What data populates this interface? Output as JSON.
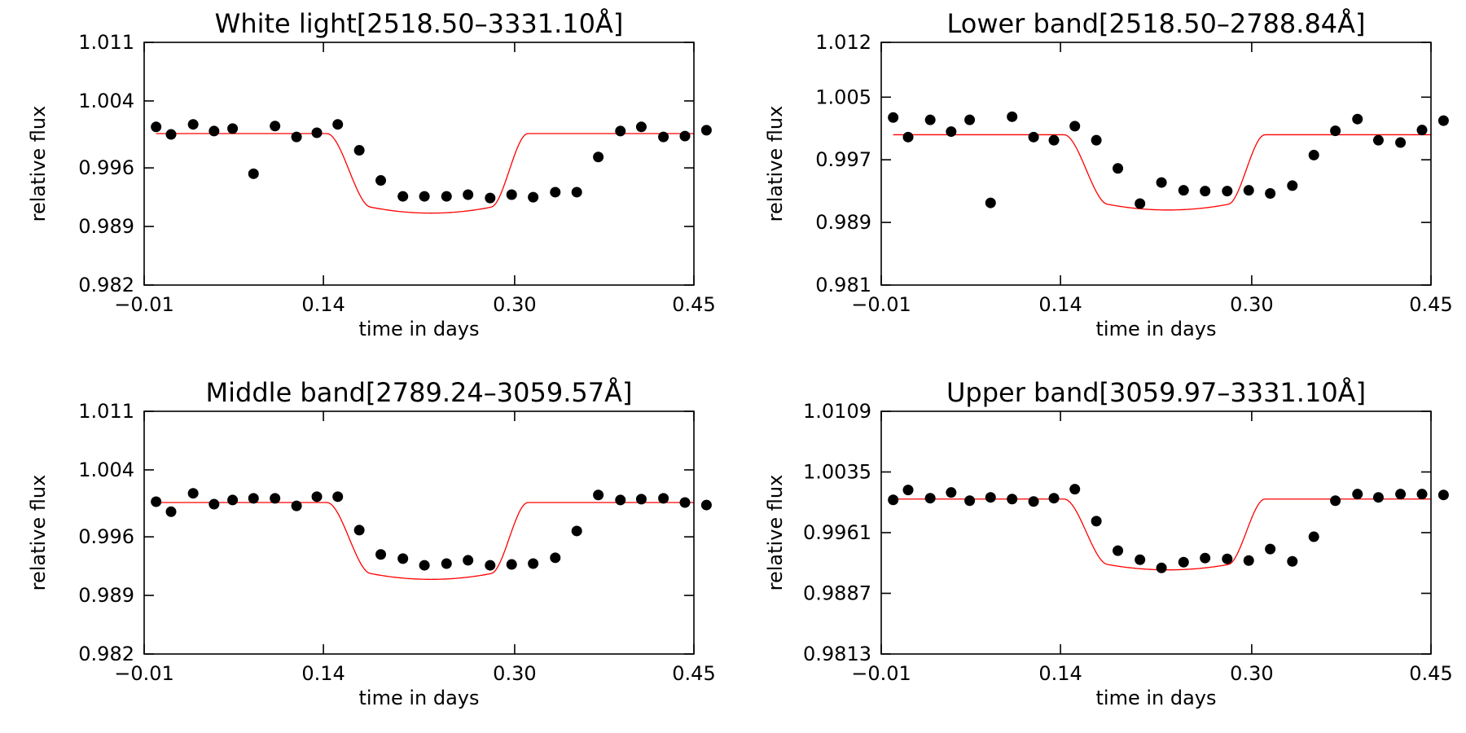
{
  "chart_data": [
    {
      "type": "scatter",
      "title": "White light[2518.50–3331.10Å]",
      "xlabel": "time in days",
      "ylabel": "relative flux",
      "xlim": [
        -0.01,
        0.45
      ],
      "ylim": [
        0.982,
        1.011
      ],
      "xticks": [
        "−0.01",
        "0.14",
        "0.30",
        "0.45"
      ],
      "xtick_values": [
        -0.01,
        0.14,
        0.3,
        0.45
      ],
      "yticks": [
        "0.982",
        "0.989",
        "0.996",
        "1.004",
        "1.011"
      ],
      "yticks_values": [
        0.982,
        0.989,
        0.996,
        1.004,
        1.011
      ],
      "model": {
        "color": "#ff0000",
        "baseline": 1.0001,
        "depth": 0.0088,
        "ingress_start": 0.143,
        "ingress_end": 0.18,
        "egress_start": 0.28,
        "egress_end": 0.311
      },
      "series": [
        {
          "name": "data",
          "x": [
            0.0,
            0.0125,
            0.031,
            0.0485,
            0.064,
            0.0815,
            0.0995,
            0.1175,
            0.1345,
            0.152,
            0.17,
            0.188,
            0.2065,
            0.2245,
            0.243,
            0.261,
            0.2795,
            0.2975,
            0.3155,
            0.334,
            0.352,
            0.37,
            0.3885,
            0.406,
            0.4245,
            0.4425,
            0.4605
          ],
          "y": [
            1.0009,
            1.0,
            1.0012,
            1.0004,
            1.0007,
            0.9953,
            1.001,
            0.9997,
            1.0002,
            1.0012,
            0.9981,
            0.9945,
            0.9926,
            0.9926,
            0.9926,
            0.9928,
            0.9924,
            0.9928,
            0.9925,
            0.9931,
            0.9931,
            0.9973,
            1.0004,
            1.0009,
            0.9997,
            0.9998,
            1.0005
          ]
        }
      ]
    },
    {
      "type": "scatter",
      "title": "Lower band[2518.50–2788.84Å]",
      "xlabel": "time in days",
      "ylabel": "relative flux",
      "xlim": [
        -0.01,
        0.45
      ],
      "ylim": [
        0.981,
        1.012
      ],
      "xticks": [
        "−0.01",
        "0.14",
        "0.30",
        "0.45"
      ],
      "xtick_values": [
        -0.01,
        0.14,
        0.3,
        0.45
      ],
      "yticks": [
        "0.981",
        "0.989",
        "0.997",
        "1.005",
        "1.012"
      ],
      "yticks_values": [
        0.981,
        0.989,
        0.997,
        1.005,
        1.012
      ],
      "model": {
        "color": "#ff0000",
        "baseline": 1.0002,
        "depth": 0.0089,
        "ingress_start": 0.143,
        "ingress_end": 0.18,
        "egress_start": 0.28,
        "egress_end": 0.311
      },
      "series": [
        {
          "name": "data",
          "x": [
            0.0,
            0.0125,
            0.031,
            0.0485,
            0.064,
            0.0815,
            0.0995,
            0.1175,
            0.1345,
            0.152,
            0.17,
            0.188,
            0.2065,
            0.2245,
            0.243,
            0.261,
            0.2795,
            0.2975,
            0.3155,
            0.334,
            0.352,
            0.37,
            0.3885,
            0.406,
            0.4245,
            0.4425,
            0.4605
          ],
          "y": [
            1.0024,
            0.9999,
            1.0021,
            1.0006,
            1.0021,
            0.9915,
            1.0025,
            0.9999,
            0.9995,
            1.0013,
            0.9995,
            0.9959,
            0.9914,
            0.9941,
            0.9931,
            0.993,
            0.993,
            0.9931,
            0.9927,
            0.9937,
            0.9976,
            1.0007,
            1.0022,
            0.9995,
            0.9992,
            1.0008,
            1.002
          ]
        }
      ]
    },
    {
      "type": "scatter",
      "title": "Middle band[2789.24–3059.57Å]",
      "xlabel": "time in days",
      "ylabel": "relative flux",
      "xlim": [
        -0.01,
        0.45
      ],
      "ylim": [
        0.982,
        1.011
      ],
      "xticks": [
        "−0.01",
        "0.14",
        "0.30",
        "0.45"
      ],
      "xtick_values": [
        -0.01,
        0.14,
        0.3,
        0.45
      ],
      "yticks": [
        "0.982",
        "0.989",
        "0.996",
        "1.004",
        "1.011"
      ],
      "yticks_values": [
        0.982,
        0.989,
        0.996,
        1.004,
        1.011
      ],
      "model": {
        "color": "#ff0000",
        "baseline": 1.0001,
        "depth": 0.0085,
        "ingress_start": 0.143,
        "ingress_end": 0.18,
        "egress_start": 0.28,
        "egress_end": 0.311
      },
      "series": [
        {
          "name": "data",
          "x": [
            0.0,
            0.0125,
            0.031,
            0.0485,
            0.064,
            0.0815,
            0.0995,
            0.1175,
            0.1345,
            0.152,
            0.17,
            0.188,
            0.2065,
            0.2245,
            0.243,
            0.261,
            0.2795,
            0.2975,
            0.3155,
            0.334,
            0.352,
            0.37,
            0.3885,
            0.406,
            0.4245,
            0.4425,
            0.4605
          ],
          "y": [
            1.0002,
            0.999,
            1.0012,
            0.9999,
            1.0004,
            1.0006,
            1.0006,
            0.9997,
            1.0008,
            1.0008,
            0.9968,
            0.9939,
            0.9934,
            0.9926,
            0.9928,
            0.9932,
            0.9926,
            0.9927,
            0.9928,
            0.9935,
            0.9967,
            1.001,
            1.0004,
            1.0005,
            1.0006,
            1.0001,
            0.9998
          ]
        }
      ]
    },
    {
      "type": "scatter",
      "title": "Upper band[3059.97–3331.10Å]",
      "xlabel": "time in days",
      "ylabel": "relative flux",
      "xlim": [
        -0.01,
        0.45
      ],
      "ylim": [
        0.9813,
        1.0109
      ],
      "xticks": [
        "−0.01",
        "0.14",
        "0.30",
        "0.45"
      ],
      "xtick_values": [
        -0.01,
        0.14,
        0.3,
        0.45
      ],
      "yticks": [
        "0.9813",
        "0.9887",
        "0.9961",
        "1.0035",
        "1.0109"
      ],
      "yticks_values": [
        0.9813,
        0.9887,
        0.9961,
        1.0035,
        1.0109
      ],
      "model": {
        "color": "#ff0000",
        "baseline": 1.0002,
        "depth": 0.008,
        "ingress_start": 0.143,
        "ingress_end": 0.18,
        "egress_start": 0.28,
        "egress_end": 0.311
      },
      "series": [
        {
          "name": "data",
          "x": [
            0.0,
            0.0125,
            0.031,
            0.0485,
            0.064,
            0.0815,
            0.0995,
            0.1175,
            0.1345,
            0.152,
            0.17,
            0.188,
            0.2065,
            0.2245,
            0.243,
            0.261,
            0.2795,
            0.2975,
            0.3155,
            0.334,
            0.352,
            0.37,
            0.3885,
            0.406,
            0.4245,
            0.4425,
            0.4605
          ],
          "y": [
            1.0001,
            1.0013,
            1.0003,
            1.001,
            1.0,
            1.0004,
            1.0002,
            0.9999,
            1.0003,
            1.0014,
            0.9975,
            0.9939,
            0.9928,
            0.9918,
            0.9925,
            0.993,
            0.9929,
            0.9927,
            0.9941,
            0.9926,
            0.9956,
            1.0,
            1.0008,
            1.0004,
            1.0008,
            1.0008,
            1.0007
          ]
        }
      ]
    }
  ]
}
